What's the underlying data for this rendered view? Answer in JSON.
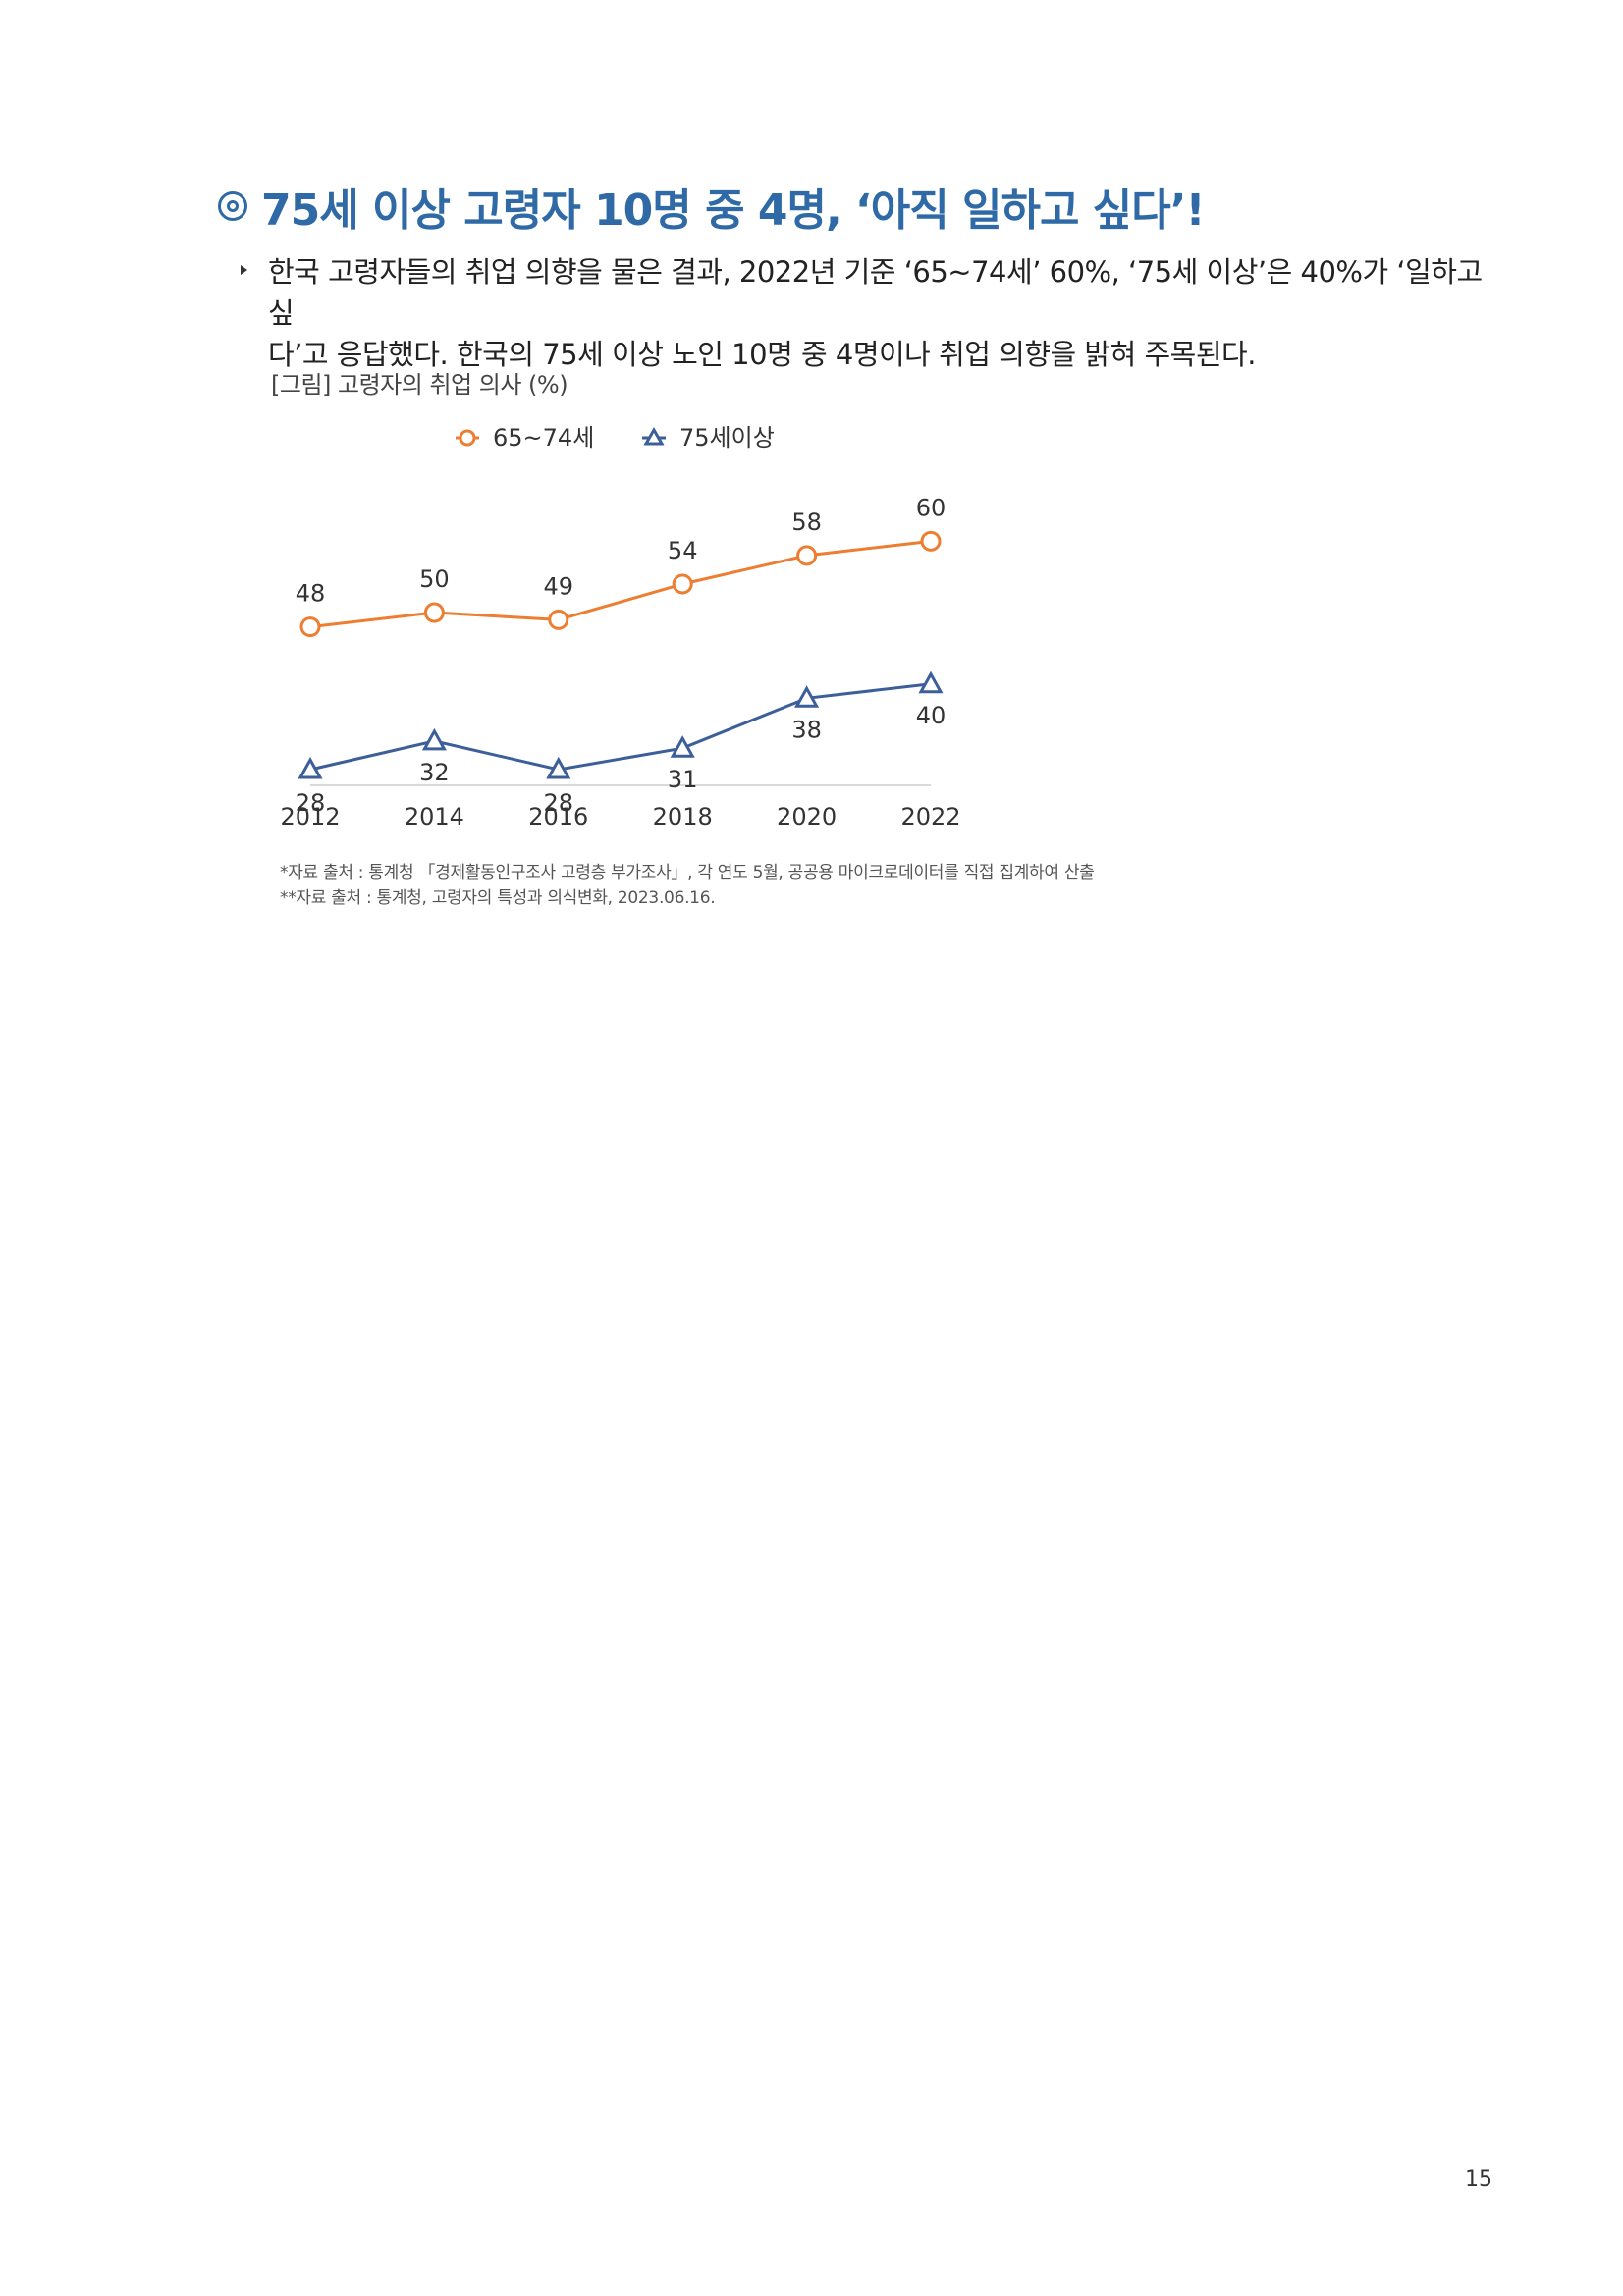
{
  "heading": {
    "icon": "double-circle-icon",
    "text": "75세 이상 고령자 10명 중 4명, ‘아직 일하고 싶다’!"
  },
  "bullet": {
    "icon": "triangle-bullet-icon",
    "text": "한국 고령자들의 취업 의향을 물은 결과, 2022년 기준 ‘65~74세’ 60%, ‘75세 이상’은 40%가 ‘일하고 싶\n다’고 응답했다. 한국의 75세 이상 노인 10명 중 4명이나 취업 의향을 밝혀 주목된다."
  },
  "figure_caption": "[그림] 고령자의 취업 의사 (%)",
  "chart_data": {
    "type": "line",
    "x": [
      "2012",
      "2014",
      "2016",
      "2018",
      "2020",
      "2022"
    ],
    "series": [
      {
        "name": "65~74세",
        "values": [
          48,
          50,
          49,
          54,
          58,
          60
        ],
        "color": "#ed7d31",
        "marker": "circle"
      },
      {
        "name": "75세이상",
        "values": [
          28,
          32,
          28,
          31,
          38,
          40
        ],
        "color": "#3c5f9a",
        "marker": "triangle"
      }
    ],
    "legend_position": "top",
    "grid": false
  },
  "footnotes": [
    "*자료 출처 : 통계청 「경제활동인구조사 고령층 부가조사」, 각 연도 5월, 공공용 마이크로데이터를 직접 집계하여 산출",
    "**자료 출처 : 통계청, 고령자의 특성과 의식변화, 2023.06.16."
  ],
  "page_number": "15"
}
